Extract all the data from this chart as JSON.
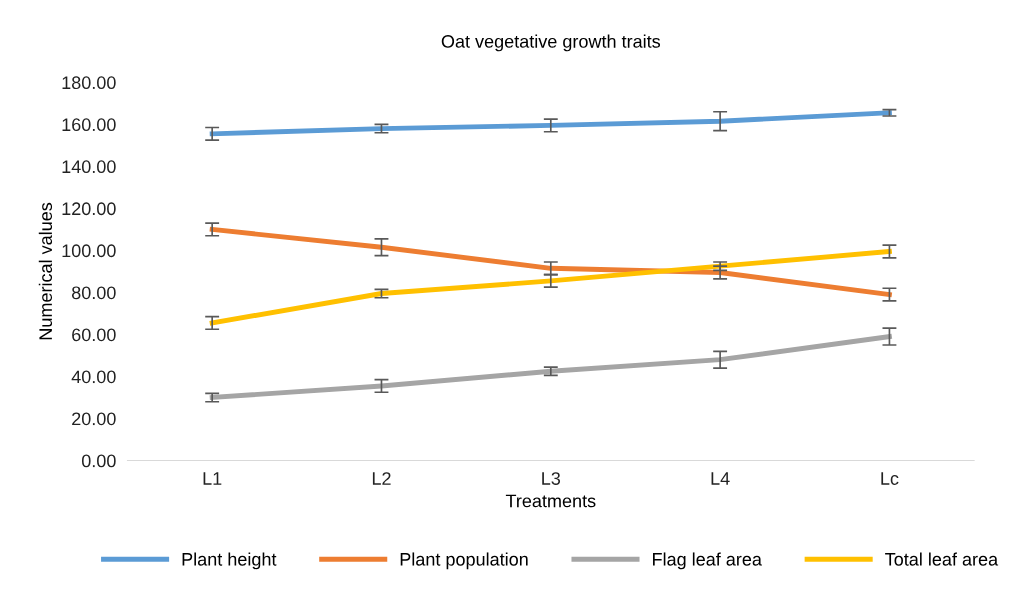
{
  "chart_data": {
    "type": "line",
    "title": "Oat vegetative growth traits",
    "xlabel": "Treatments",
    "ylabel": "Numerical values",
    "categories": [
      "L1",
      "L2",
      "L3",
      "L4",
      "Lc"
    ],
    "series": [
      {
        "name": "Plant height",
        "color": "#5b9bd5",
        "values": [
          155.5,
          158,
          159.5,
          161.5,
          165.5
        ],
        "errors": [
          3,
          2,
          3,
          4.5,
          1.5
        ]
      },
      {
        "name": "Plant population",
        "color": "#ed7d31",
        "values": [
          110,
          101.5,
          91.5,
          89.5,
          79
        ],
        "errors": [
          3,
          4,
          3,
          3,
          3
        ]
      },
      {
        "name": "Flag leaf area",
        "color": "#a5a5a5",
        "values": [
          30,
          35.5,
          42.5,
          48,
          59
        ],
        "errors": [
          2,
          3,
          2,
          4,
          4
        ]
      },
      {
        "name": "Total leaf area",
        "color": "#ffc000",
        "values": [
          65.5,
          79.5,
          85.5,
          92.5,
          99.5
        ],
        "errors": [
          3,
          2,
          3,
          2,
          3
        ]
      }
    ],
    "ylim": [
      0,
      180
    ],
    "yticks": [
      {
        "value": 0,
        "label": "0.00"
      },
      {
        "value": 20,
        "label": "20.00"
      },
      {
        "value": 40,
        "label": "40.00"
      },
      {
        "value": 60,
        "label": "60.00"
      },
      {
        "value": 80,
        "label": "80.00"
      },
      {
        "value": 100,
        "label": "100.00"
      },
      {
        "value": 120,
        "label": "120.00"
      },
      {
        "value": 140,
        "label": "140.00"
      },
      {
        "value": 160,
        "label": "160.00"
      },
      {
        "value": 180,
        "label": "180.00"
      }
    ],
    "legend": "bottom",
    "marker": "none",
    "line_style": "solid"
  }
}
